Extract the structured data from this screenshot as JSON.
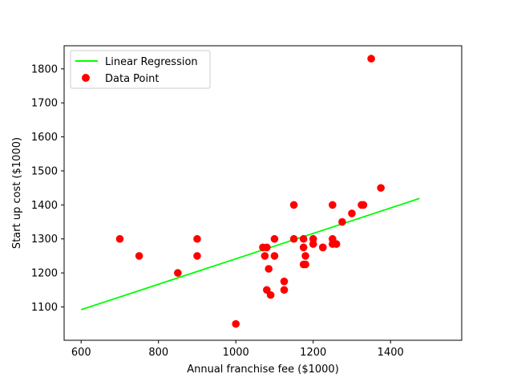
{
  "chart_data": {
    "type": "scatter",
    "title": "",
    "xlabel": "Annual franchise fee ($1000)",
    "ylabel": "Start up cost ($1000)",
    "xlim": [
      556,
      1584
    ],
    "ylim": [
      1002,
      1868
    ],
    "xticks": [
      600,
      800,
      1000,
      1200,
      1400
    ],
    "yticks": [
      1100,
      1200,
      1300,
      1400,
      1500,
      1600,
      1700,
      1800
    ],
    "grid": false,
    "legend_position": "top-left",
    "series": [
      {
        "name": "Linear Regression",
        "type": "line",
        "color": "#00ff00",
        "x": [
          600,
          1475
        ],
        "y": [
          1092,
          1419
        ]
      },
      {
        "name": "Data Point",
        "type": "scatter",
        "color": "#ff0000",
        "x": [
          700,
          750,
          850,
          900,
          900,
          1000,
          1070,
          1075,
          1080,
          1080,
          1085,
          1090,
          1100,
          1100,
          1125,
          1125,
          1150,
          1150,
          1175,
          1175,
          1175,
          1180,
          1180,
          1200,
          1200,
          1225,
          1225,
          1250,
          1250,
          1250,
          1260,
          1275,
          1300,
          1325,
          1330,
          1350,
          1375
        ],
        "y": [
          1300,
          1250,
          1200,
          1300,
          1250,
          1050,
          1275,
          1250,
          1275,
          1150,
          1212,
          1135,
          1300,
          1250,
          1175,
          1150,
          1400,
          1300,
          1300,
          1275,
          1225,
          1250,
          1225,
          1300,
          1285,
          1275,
          1275,
          1400,
          1300,
          1285,
          1285,
          1350,
          1375,
          1400,
          1400,
          1830,
          1450
        ]
      }
    ]
  }
}
